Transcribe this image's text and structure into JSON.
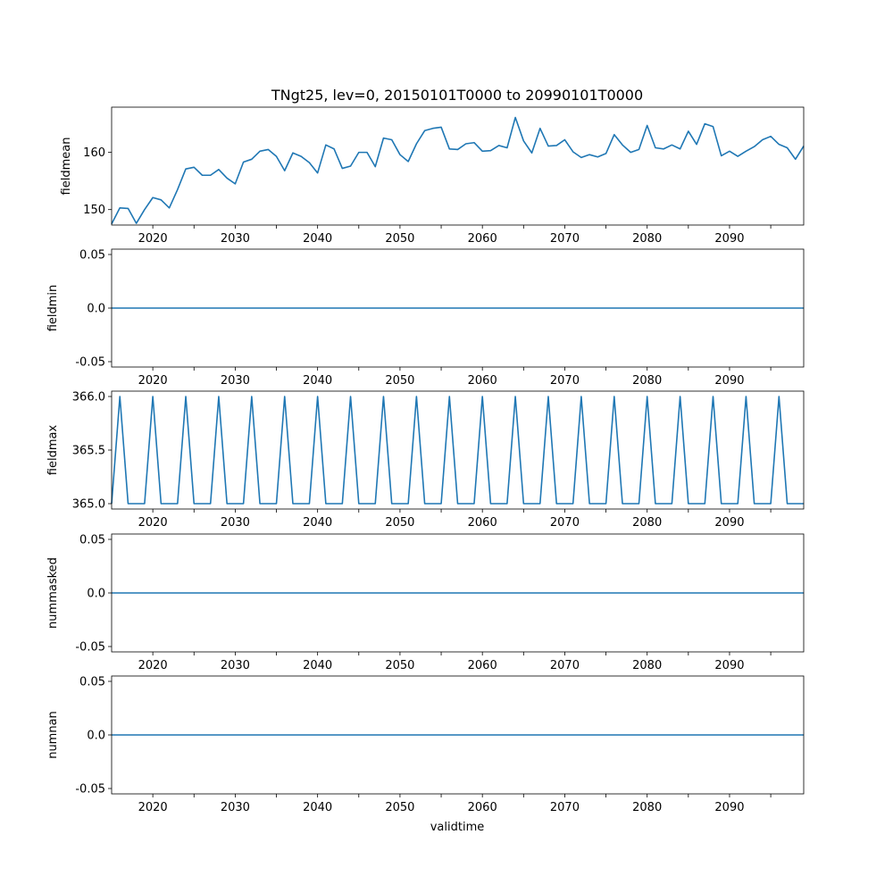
{
  "chart_data": {
    "type": "line",
    "title": "TNgt25, lev=0, 20150101T0000 to 20990101T0000",
    "xlabel": "validtime",
    "xlim": [
      2015,
      2099
    ],
    "xticks": [
      2020,
      2030,
      2040,
      2050,
      2060,
      2070,
      2080,
      2090
    ],
    "color": "#1f77b4",
    "x": [
      2015,
      2016,
      2017,
      2018,
      2019,
      2020,
      2021,
      2022,
      2023,
      2024,
      2025,
      2026,
      2027,
      2028,
      2029,
      2030,
      2031,
      2032,
      2033,
      2034,
      2035,
      2036,
      2037,
      2038,
      2039,
      2040,
      2041,
      2042,
      2043,
      2044,
      2045,
      2046,
      2047,
      2048,
      2049,
      2050,
      2051,
      2052,
      2053,
      2054,
      2055,
      2056,
      2057,
      2058,
      2059,
      2060,
      2061,
      2062,
      2063,
      2064,
      2065,
      2066,
      2067,
      2068,
      2069,
      2070,
      2071,
      2072,
      2073,
      2074,
      2075,
      2076,
      2077,
      2078,
      2079,
      2080,
      2081,
      2082,
      2083,
      2084,
      2085,
      2086,
      2087,
      2088,
      2089,
      2090,
      2091,
      2092,
      2093,
      2094,
      2095,
      2096,
      2097,
      2098,
      2099
    ],
    "panels": [
      {
        "ylabel": "fieldmean",
        "ylim": [
          147.3,
          167.9
        ],
        "yticks": [
          150,
          160
        ],
        "values": [
          147.5,
          150.3,
          150.2,
          147.6,
          150.0,
          152.1,
          151.7,
          150.3,
          153.5,
          157.1,
          157.4,
          156.0,
          156.0,
          157.0,
          155.5,
          154.5,
          158.3,
          158.8,
          160.2,
          160.5,
          159.3,
          156.8,
          159.9,
          159.3,
          158.2,
          156.4,
          161.3,
          160.6,
          157.2,
          157.6,
          160.0,
          160.0,
          157.5,
          162.5,
          162.2,
          159.6,
          158.4,
          161.5,
          163.8,
          164.2,
          164.4,
          160.6,
          160.5,
          161.5,
          161.7,
          160.2,
          160.3,
          161.2,
          160.8,
          166.1,
          162.0,
          159.9,
          164.2,
          161.1,
          161.2,
          162.2,
          160.1,
          159.1,
          159.6,
          159.2,
          159.8,
          163.1,
          161.3,
          160.0,
          160.5,
          164.7,
          160.8,
          160.6,
          161.3,
          160.6,
          163.7,
          161.4,
          165.0,
          164.5,
          159.4,
          160.2,
          159.3,
          160.2,
          161.0,
          162.2,
          162.8,
          161.4,
          160.8,
          158.8,
          161.1
        ]
      },
      {
        "ylabel": "fieldmin",
        "ylim": [
          -0.055,
          0.055
        ],
        "yticks": [
          -0.05,
          0.0,
          0.05
        ],
        "constant": 0
      },
      {
        "ylabel": "fieldmax",
        "ylim": [
          364.95,
          366.05
        ],
        "yticks": [
          365.0,
          365.5,
          366.0
        ],
        "leap_value": 366,
        "other_value": 365,
        "leap_years": [
          2016,
          2020,
          2024,
          2028,
          2032,
          2036,
          2040,
          2044,
          2048,
          2052,
          2056,
          2060,
          2064,
          2068,
          2072,
          2076,
          2080,
          2084,
          2088,
          2092,
          2096
        ]
      },
      {
        "ylabel": "nummasked",
        "ylim": [
          -0.055,
          0.055
        ],
        "yticks": [
          -0.05,
          0.0,
          0.05
        ],
        "constant": 0
      },
      {
        "ylabel": "numnan",
        "ylim": [
          -0.055,
          0.055
        ],
        "yticks": [
          -0.05,
          0.0,
          0.05
        ],
        "constant": 0
      }
    ]
  }
}
